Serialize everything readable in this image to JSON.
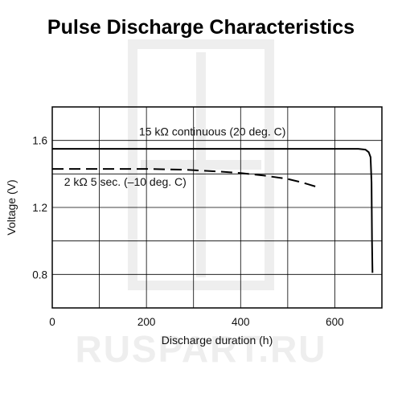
{
  "chart_data": {
    "type": "line",
    "title": "Pulse Discharge Characteristics",
    "xlabel": "Discharge duration (h)",
    "ylabel": "Voltage (V)",
    "xlim": [
      0,
      700
    ],
    "ylim": [
      0.6,
      1.8
    ],
    "xticks": [
      0,
      200,
      400,
      600
    ],
    "xtick_labels": [
      "0",
      "200",
      "400",
      "600"
    ],
    "yticks": [
      0.8,
      1.2,
      1.6
    ],
    "ytick_labels": [
      "0.8",
      "1.2",
      "1.6"
    ],
    "grid": true,
    "legend": "none",
    "series": [
      {
        "name": "15 kΩ continuous (20 deg. C)",
        "style": "solid",
        "color": "#000000",
        "x": [
          0,
          100,
          200,
          300,
          400,
          500,
          600,
          650,
          665,
          672,
          676,
          678,
          679,
          680
        ],
        "y": [
          1.55,
          1.55,
          1.55,
          1.55,
          1.55,
          1.55,
          1.55,
          1.55,
          1.545,
          1.53,
          1.5,
          1.35,
          1.0,
          0.81
        ]
      },
      {
        "name": "2 kΩ 5 sec. (–10 deg. C)",
        "style": "dashed",
        "color": "#000000",
        "x": [
          0,
          100,
          200,
          280,
          350,
          400,
          450,
          500,
          530,
          565
        ],
        "y": [
          1.43,
          1.43,
          1.43,
          1.425,
          1.415,
          1.405,
          1.39,
          1.37,
          1.35,
          1.32
        ]
      }
    ],
    "annotations": [
      {
        "text": "15 kΩ continuous (20 deg. C)",
        "x": 340,
        "y": 1.63
      },
      {
        "text": "2 kΩ 5 sec. (–10 deg. C)",
        "x": 155,
        "y": 1.33
      }
    ]
  },
  "watermark": {
    "text": "RUSPART.RU",
    "color": "#eeeeee"
  }
}
